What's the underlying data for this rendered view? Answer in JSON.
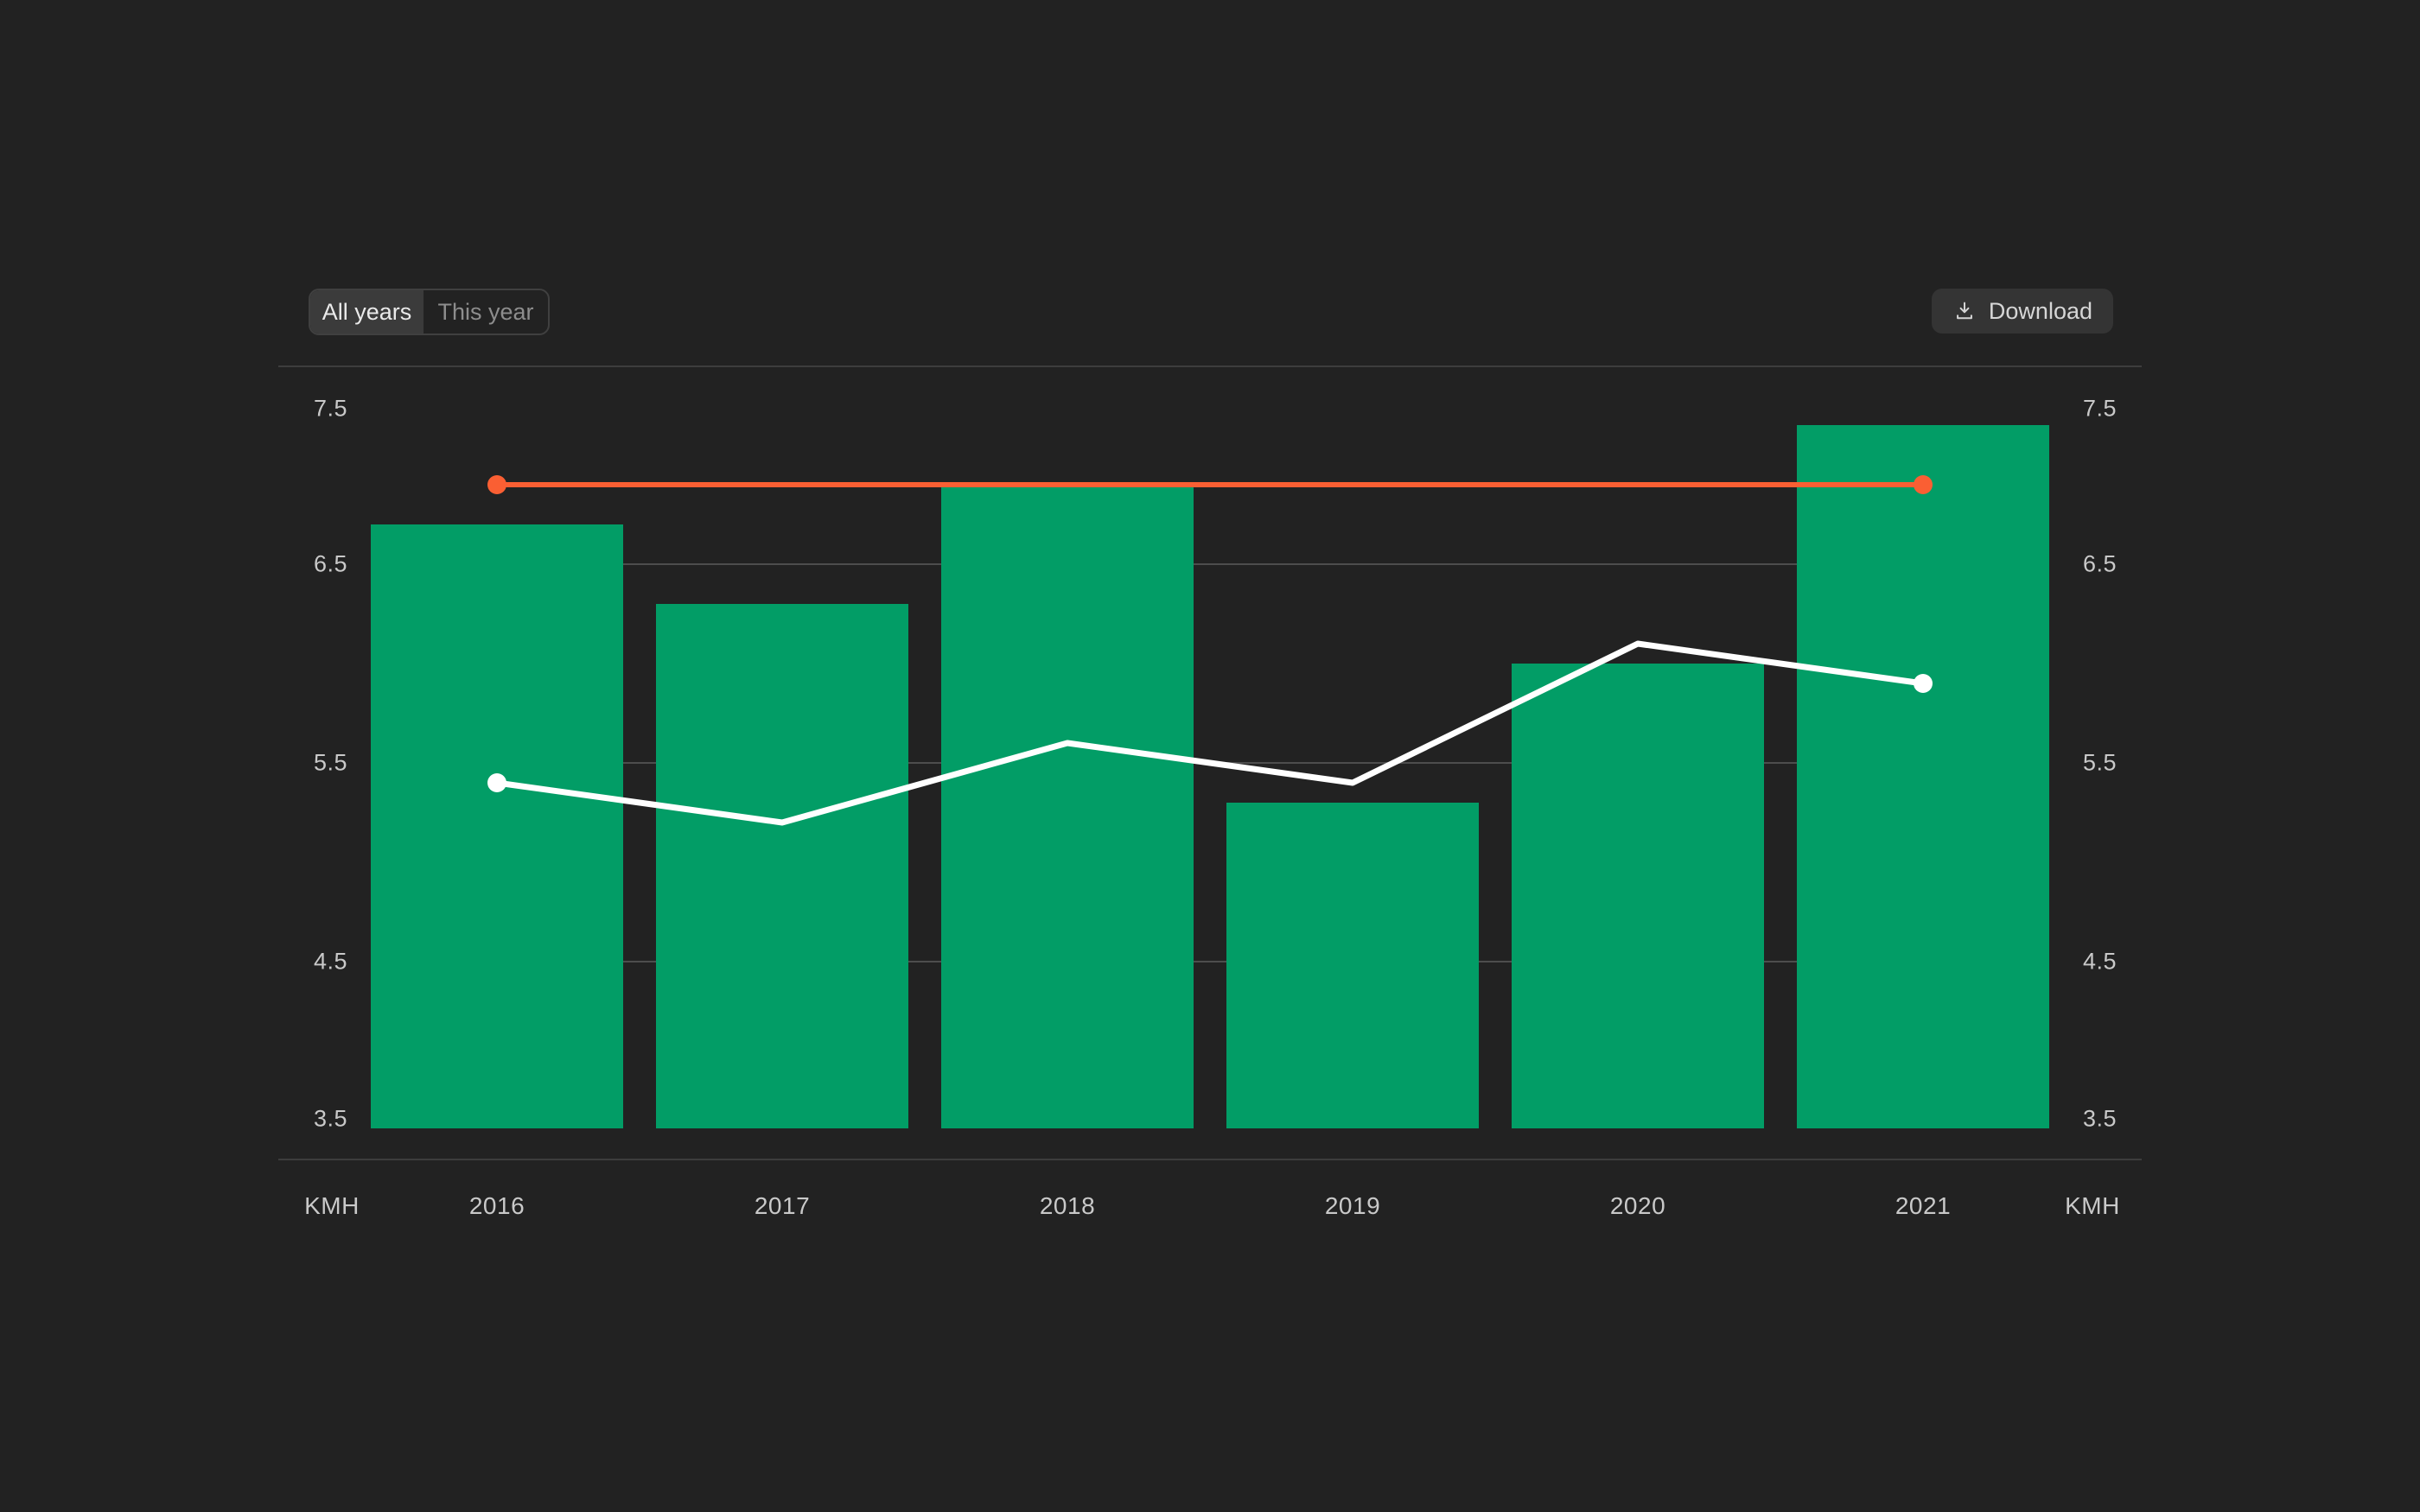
{
  "toolbar": {
    "filter": {
      "options": [
        {
          "label": "All years",
          "active": true
        },
        {
          "label": "This year",
          "active": false
        }
      ]
    },
    "download": {
      "label": "Download",
      "icon": "download-icon"
    }
  },
  "chart_data": {
    "type": "bar+line",
    "categories": [
      "2016",
      "2017",
      "2018",
      "2019",
      "2020",
      "2021"
    ],
    "series": [
      {
        "name": "bars",
        "type": "bar",
        "color": "#029d66",
        "values": [
          6.7,
          6.3,
          6.9,
          5.3,
          6.0,
          7.2
        ]
      },
      {
        "name": "trend-line",
        "type": "line",
        "color": "#ffffff",
        "values": [
          5.4,
          5.2,
          5.6,
          5.4,
          6.1,
          5.9
        ],
        "endpoint_dots": true
      },
      {
        "name": "reference-line",
        "type": "line",
        "color": "#fa5f33",
        "values": [
          6.9,
          6.9,
          6.9,
          6.9,
          6.9,
          6.9
        ],
        "endpoint_dots": true
      }
    ],
    "ylim": [
      3.5,
      7.5
    ],
    "y_ticks": [
      7.5,
      6.5,
      5.5,
      4.5,
      3.5
    ],
    "y_axis_unit_left": "KMH",
    "y_axis_unit_right": "KMH",
    "grid": "horizontal",
    "legend": "none"
  },
  "theme": {
    "background": "#222222",
    "button_background": "#343434",
    "toggle_active_background": "#3b3b3b",
    "toggle_border": "#404040",
    "border_color": "#3d3d3d",
    "grid_color": "#4d4d4d",
    "text_primary": "#eaeaea",
    "text_muted": "#8d8d8d",
    "text_button": "#d6d6d6",
    "text_axis": "#c9c9c9"
  }
}
